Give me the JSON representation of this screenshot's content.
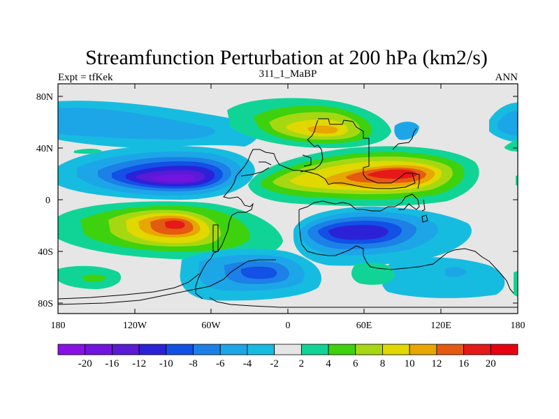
{
  "title": "Streamfunction Perturbation at 200 hPa (km2/s)",
  "subtitle_left": "Expt = tfKek",
  "subtitle_center": "311_1_MaBP",
  "subtitle_right": "ANN",
  "y_ticks": [
    "80N",
    "40N",
    "0",
    "40S",
    "80S"
  ],
  "x_ticks": [
    "180",
    "120W",
    "60W",
    "0",
    "60E",
    "120E",
    "180"
  ],
  "colorbar": {
    "labels": [
      "-20",
      "-16",
      "-12",
      "-10",
      "-8",
      "-6",
      "-4",
      "-2",
      "2",
      "4",
      "6",
      "8",
      "10",
      "12",
      "16",
      "20"
    ],
    "colors": [
      "#8a10e6",
      "#7214e0",
      "#5a1ad6",
      "#2b22d8",
      "#1250e6",
      "#1c80e6",
      "#1ca6e8",
      "#16bce0",
      "#e6e6e6",
      "#10d496",
      "#3ed10e",
      "#a6d812",
      "#e0d800",
      "#e8a600",
      "#e45a10",
      "#e61818",
      "#e60010"
    ]
  },
  "palette": {
    "background": "#e6e6e6",
    "neg1": "#16bce0",
    "neg2": "#1ca6e8",
    "neg3": "#1c80e6",
    "neg4": "#1250e6",
    "neg5": "#2b22d8",
    "neg6": "#5a1ad6",
    "neg7": "#7214e0",
    "pos1": "#10d496",
    "pos2": "#3ed10e",
    "pos3": "#a6d812",
    "pos4": "#e0d800",
    "pos5": "#e8a600",
    "pos6": "#e45a10",
    "pos7": "#e61818"
  }
}
